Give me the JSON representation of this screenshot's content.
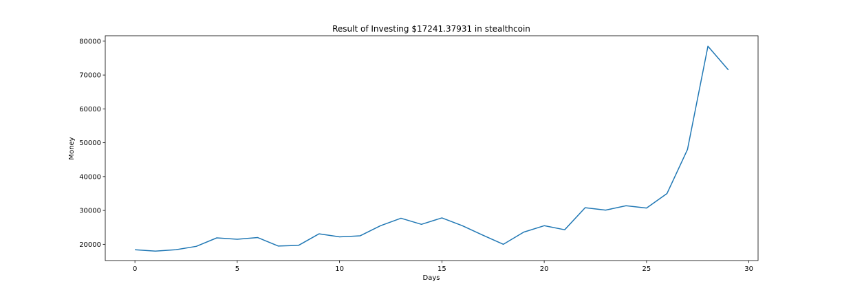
{
  "chart_data": {
    "type": "line",
    "title": "Result of Investing $17241.37931 in stealthcoin",
    "xlabel": "Days",
    "ylabel": "Money",
    "xlim": [
      -1.45,
      30.45
    ],
    "ylim": [
      15200,
      81600
    ],
    "xticks": [
      0,
      5,
      10,
      15,
      20,
      25,
      30
    ],
    "yticks": [
      20000,
      30000,
      40000,
      50000,
      60000,
      70000,
      80000
    ],
    "grid": false,
    "series_color": "#1f77b4",
    "series": [
      {
        "x": [
          0,
          1,
          2,
          3,
          4,
          5,
          6,
          7,
          8,
          9,
          10,
          11,
          12,
          13,
          14,
          15,
          16,
          17,
          18,
          19,
          20,
          21,
          22,
          23,
          24,
          25,
          26,
          27,
          28,
          29
        ],
        "values": [
          18400,
          18000,
          18400,
          19400,
          21900,
          21500,
          22000,
          19500,
          19700,
          23100,
          22200,
          22500,
          25500,
          27700,
          25900,
          27800,
          25500,
          22700,
          20000,
          23600,
          25500,
          24300,
          30800,
          30100,
          31400,
          30700,
          35000,
          48000,
          78500,
          71500
        ]
      }
    ]
  }
}
